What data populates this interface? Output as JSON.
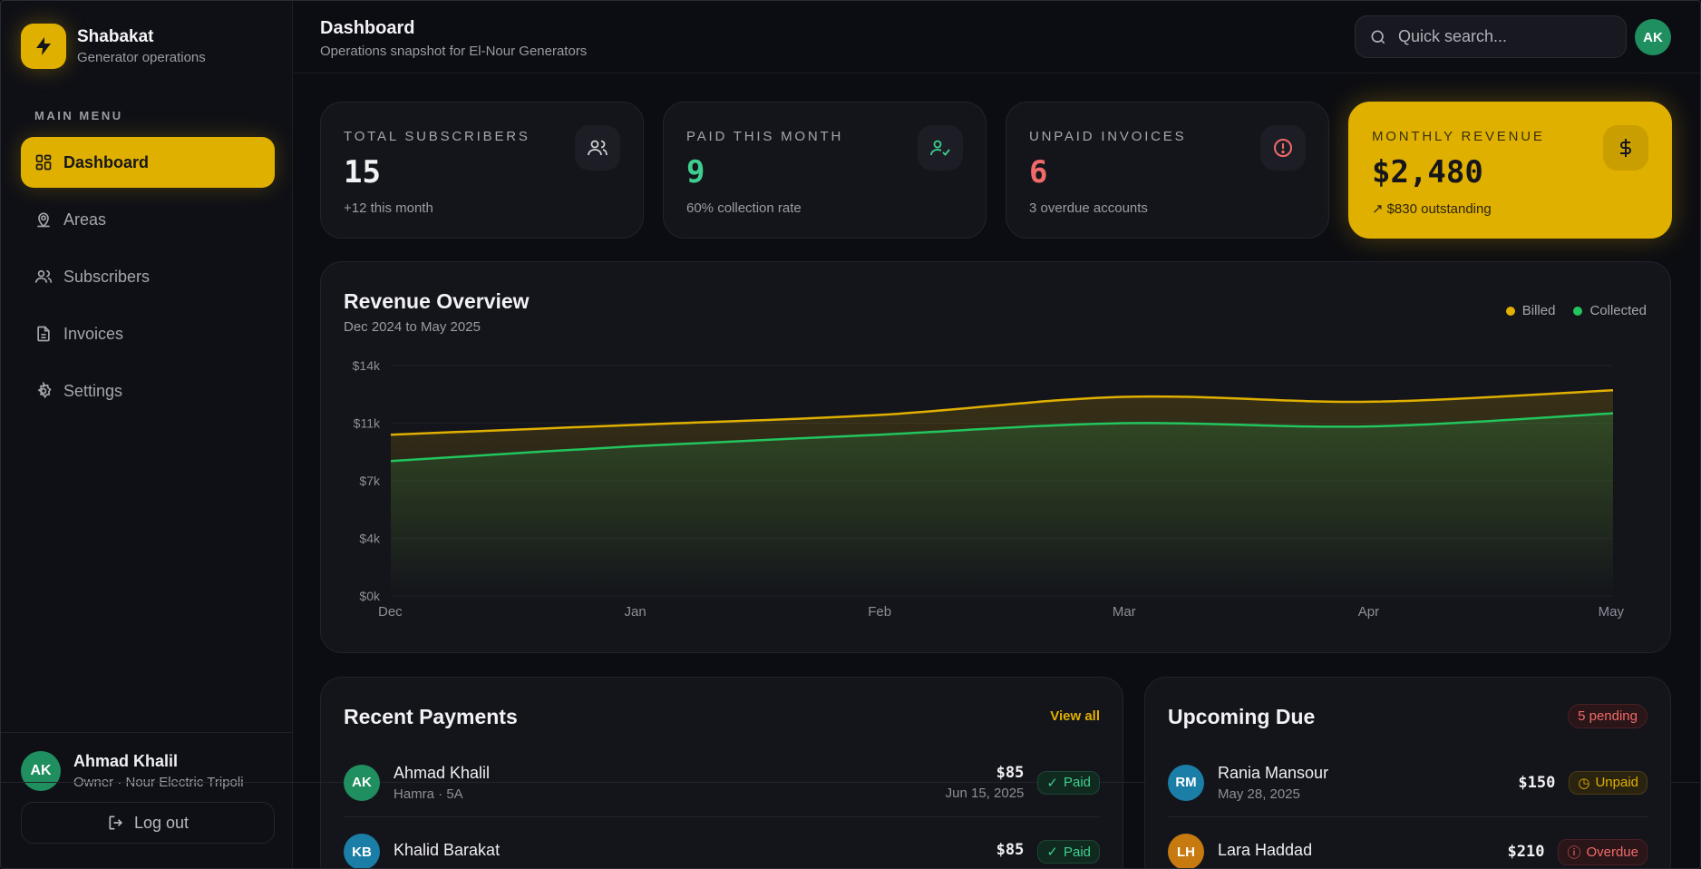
{
  "brand": {
    "name": "Shabakat",
    "subtitle": "Generator operations"
  },
  "sidebar": {
    "menu_label": "MAIN MENU",
    "items": [
      {
        "label": "Dashboard",
        "icon": "grid-icon",
        "active": true
      },
      {
        "label": "Areas",
        "icon": "map-pin-icon",
        "active": false
      },
      {
        "label": "Subscribers",
        "icon": "users-icon",
        "active": false
      },
      {
        "label": "Invoices",
        "icon": "file-icon",
        "active": false
      },
      {
        "label": "Settings",
        "icon": "gear-icon",
        "active": false
      }
    ],
    "user": {
      "initials": "AK",
      "name": "Ahmad Khalil",
      "role": "Owner · Nour Electric Tripoli"
    },
    "logout_label": "Log out"
  },
  "header": {
    "title": "Dashboard",
    "subtitle": "Operations snapshot for El-Nour Generators",
    "search_placeholder": "Quick search...",
    "avatar_initials": "AK"
  },
  "stats": [
    {
      "label": "TOTAL SUBSCRIBERS",
      "value": "15",
      "sub": "+12 this month",
      "icon": "users-icon",
      "value_color": "#f2f2f4"
    },
    {
      "label": "PAID THIS MONTH",
      "value": "9",
      "sub": "60% collection rate",
      "icon": "user-check-icon",
      "value_color": "#3ecf8e"
    },
    {
      "label": "UNPAID INVOICES",
      "value": "6",
      "sub": "3 overdue accounts",
      "icon": "alert-circle-icon",
      "value_color": "#f06a6a"
    },
    {
      "label": "MONTHLY REVENUE",
      "value": "$2,480",
      "sub": "$830 outstanding",
      "icon": "dollar-icon",
      "value_color": "#16161a"
    }
  ],
  "revenue": {
    "title": "Revenue Overview",
    "subtitle": "Dec 2024 to May 2025",
    "legend": [
      {
        "label": "Billed",
        "color": "#e0b000"
      },
      {
        "label": "Collected",
        "color": "#22c55e"
      }
    ]
  },
  "chart_data": {
    "type": "area",
    "categories": [
      "Dec",
      "Jan",
      "Feb",
      "Mar",
      "Apr",
      "May"
    ],
    "series": [
      {
        "name": "Billed",
        "color": "#e0b000",
        "values": [
          9800,
          10400,
          11000,
          12100,
          11800,
          12500
        ]
      },
      {
        "name": "Collected",
        "color": "#22c55e",
        "values": [
          8200,
          9100,
          9800,
          10500,
          10300,
          11100
        ]
      }
    ],
    "ylim": [
      0,
      14000
    ],
    "yticks": [
      {
        "value": 0,
        "label": "$0k"
      },
      {
        "value": 3500,
        "label": "$4k"
      },
      {
        "value": 7000,
        "label": "$7k"
      },
      {
        "value": 10500,
        "label": "$11k"
      },
      {
        "value": 14000,
        "label": "$14k"
      }
    ],
    "grid": true
  },
  "recent_payments": {
    "title": "Recent Payments",
    "view_all": "View all",
    "rows": [
      {
        "initials": "AK",
        "avatar_color": "#1f8f5f",
        "name": "Ahmad Khalil",
        "meta": "Hamra · 5A",
        "amount": "$85",
        "date": "Jun 15, 2025",
        "status": "Paid"
      },
      {
        "initials": "KB",
        "avatar_color": "#1a7ea6",
        "name": "Khalid Barakat",
        "meta": "",
        "amount": "$85",
        "date": "",
        "status": "Paid"
      }
    ]
  },
  "upcoming_due": {
    "title": "Upcoming Due",
    "badge": "5 pending",
    "rows": [
      {
        "initials": "RM",
        "avatar_color": "#1a7ea6",
        "name": "Rania Mansour",
        "meta": "May 28, 2025",
        "amount": "$150",
        "status": "Unpaid"
      },
      {
        "initials": "LH",
        "avatar_color": "#c67a10",
        "name": "Lara Haddad",
        "meta": "",
        "amount": "$210",
        "status": "Overdue"
      }
    ]
  }
}
